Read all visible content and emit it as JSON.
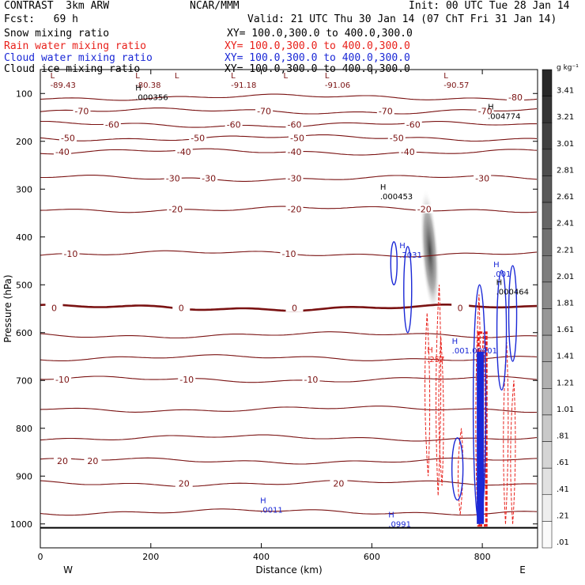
{
  "header": {
    "title": "CONTRAST  3km ARW",
    "org": "NCAR/MMM",
    "init": "Init: 00 UTC Tue 28 Jan 14",
    "fcst": "Fcst:   69 h",
    "valid": "Valid: 21 UTC Thu 30 Jan 14 (07 ChT Fri 31 Jan 14)"
  },
  "legend": [
    {
      "name": "Snow mixing ratio",
      "xy": "XY= 100.0,300.0 to 400.0,300.0",
      "color": "#000000"
    },
    {
      "name": "Rain water mixing ratio",
      "xy": "XY= 100.0,300.0 to 400.0,300.0",
      "color": "#e8201a"
    },
    {
      "name": "Cloud water mixing ratio",
      "xy": "XY= 100.0,300.0 to 400.0,300.0",
      "color": "#1a28d6"
    },
    {
      "name": "Cloud ice mixing ratio",
      "xy": "XY= 100.0,300.0 to 400.0,300.0",
      "color": "#000000"
    }
  ],
  "chart_data": {
    "type": "contour",
    "xlabel": "Distance (km)",
    "ylabel": "Pressure (hPa)",
    "xlim": [
      0,
      900
    ],
    "ylim": [
      1050,
      50
    ],
    "x_ticks": [
      0,
      200,
      400,
      600,
      800
    ],
    "y_ticks": [
      100,
      200,
      300,
      400,
      500,
      600,
      700,
      800,
      900,
      1000
    ],
    "x_end_labels": {
      "left": "W",
      "right": "E"
    },
    "colorbar": {
      "unit": "g kg⁻¹",
      "labels": [
        "3.41",
        "3.21",
        "3.01",
        "2.81",
        "2.61",
        "2.41",
        "2.21",
        "2.01",
        "1.81",
        "1.61",
        "1.41",
        "1.21",
        "1.01",
        ".81",
        ".61",
        ".41",
        ".21",
        ".01"
      ]
    },
    "temperature_contours": [
      {
        "label": "-80",
        "p": 108,
        "x_labels": [
          860
        ],
        "h_label": true
      },
      {
        "label": "-70",
        "p": 137,
        "x_labels": [
          75,
          405,
          625,
          805
        ]
      },
      {
        "label": "-60",
        "p": 165,
        "x_labels": [
          130,
          350,
          460,
          675
        ]
      },
      {
        "label": "-50",
        "p": 193,
        "x_labels": [
          50,
          285,
          465,
          645
        ]
      },
      {
        "label": "-40",
        "p": 222,
        "x_labels": [
          40,
          260,
          460,
          665
        ]
      },
      {
        "label": "-30",
        "p": 277,
        "x_labels": [
          240,
          305,
          460,
          800
        ]
      },
      {
        "label": "-20",
        "p": 342,
        "x_labels": [
          245,
          460,
          695
        ]
      },
      {
        "label": "-10",
        "p": 435,
        "x_labels": [
          55,
          450
        ]
      },
      {
        "label": "0",
        "p": 548,
        "x_labels": [
          25,
          255,
          460,
          760
        ],
        "bold": true
      },
      {
        "label": "",
        "p": 605
      },
      {
        "label": "",
        "p": 653
      },
      {
        "label": "-10",
        "p": 698,
        "x_labels": [
          40,
          265,
          490
        ]
      },
      {
        "label": "",
        "p": 760
      },
      {
        "label": "",
        "p": 820
      },
      {
        "label": "20",
        "p": 868,
        "x_labels": [
          40,
          95
        ]
      },
      {
        "label": "20",
        "p": 915,
        "x_labels": [
          260,
          540
        ]
      },
      {
        "label": "",
        "p": 975
      }
    ],
    "min_max_labels": [
      {
        "type": "L",
        "value": "-89.43",
        "x": 18,
        "p": 85
      },
      {
        "type": "L",
        "value": "-80.38",
        "x": 172,
        "p": 85
      },
      {
        "type": "L",
        "value": "-91.18",
        "x": 345,
        "p": 85
      },
      {
        "type": "L",
        "value": "-91.06",
        "x": 515,
        "p": 85
      },
      {
        "type": "L",
        "value": "-90.57",
        "x": 730,
        "p": 85
      },
      {
        "type": "L",
        "value": "",
        "x": 243,
        "p": 85
      },
      {
        "type": "L",
        "value": "",
        "x": 440,
        "p": 85
      },
      {
        "type": "H",
        "value": ".000356",
        "x": 172,
        "p": 110,
        "color": "#000000"
      },
      {
        "type": "H",
        "value": ".004774",
        "x": 810,
        "p": 150,
        "color": "#000000"
      },
      {
        "type": "H",
        "value": ".000453",
        "x": 615,
        "p": 318,
        "color": "#000000"
      },
      {
        "type": "H",
        "value": ".000464",
        "x": 825,
        "p": 517,
        "color": "#000000"
      },
      {
        "type": "H",
        "value": ".7031",
        "x": 650,
        "p": 440,
        "color": "#1a28d6"
      },
      {
        "type": "H",
        "value": ".001",
        "x": 820,
        "p": 480,
        "color": "#1a28d6"
      },
      {
        "type": "H",
        "value": ".0011",
        "x": 398,
        "p": 973,
        "color": "#1a28d6"
      },
      {
        "type": "H",
        "value": ".0991",
        "x": 630,
        "p": 1003,
        "color": "#1a28d6"
      },
      {
        "type": "H",
        "value": ".257",
        "x": 700,
        "p": 658,
        "color": "#e8201a"
      },
      {
        "type": "H",
        "value": ".001.00001",
        "x": 745,
        "p": 640,
        "color": "#1a28d6"
      }
    ]
  }
}
